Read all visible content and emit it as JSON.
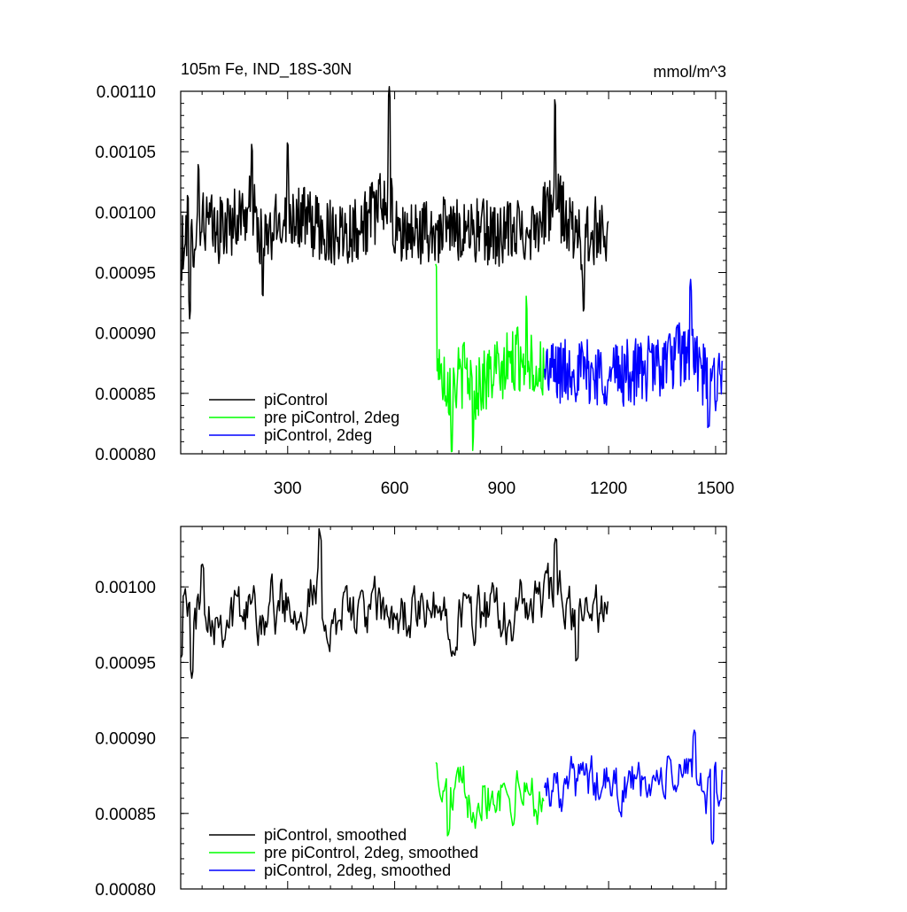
{
  "chart_data": [
    {
      "type": "line",
      "title": "105m Fe, IND_18S-30N",
      "units": "mmol/m^3",
      "xlabel": "",
      "ylabel": "",
      "xlim": [
        0,
        1530
      ],
      "ylim": [
        0.0008,
        0.0011
      ],
      "x_ticks": [
        300,
        600,
        900,
        1200,
        1500
      ],
      "y_ticks": [
        "0.00080",
        "0.00085",
        "0.00090",
        "0.00095",
        "0.00100",
        "0.00105",
        "0.00110"
      ],
      "legend_position": "bottom-left",
      "series": [
        {
          "name": "piControl",
          "color": "#000000",
          "x_range": [
            1,
            1200
          ],
          "mean": 0.000985,
          "variability": 2e-05,
          "approx_points": [
            [
              1,
              0.000945
            ],
            [
              10,
              0.000962
            ],
            [
              20,
              0.00102
            ],
            [
              25,
              0.00091
            ],
            [
              50,
              0.001037
            ],
            [
              100,
              0.00098
            ],
            [
              200,
              0.001058
            ],
            [
              230,
              0.00093
            ],
            [
              300,
              0.001055
            ],
            [
              400,
              0.00098
            ],
            [
              500,
              0.00099
            ],
            [
              585,
              0.001097
            ],
            [
              600,
              0.00097
            ],
            [
              700,
              0.00098
            ],
            [
              800,
              0.00099
            ],
            [
              900,
              0.00097
            ],
            [
              1000,
              0.001
            ],
            [
              1050,
              0.001087
            ],
            [
              1130,
              0.00092
            ],
            [
              1150,
              0.00098
            ],
            [
              1200,
              0.000995
            ]
          ]
        },
        {
          "name": "pre piControl, 2deg",
          "color": "#00ff00",
          "x_range": [
            715,
            1020
          ],
          "mean": 0.00087,
          "variability": 2e-05,
          "approx_points": [
            [
              715,
              0.000955
            ],
            [
              730,
              0.00087
            ],
            [
              760,
              0.000805
            ],
            [
              800,
              0.00087
            ],
            [
              820,
              0.000808
            ],
            [
              900,
              0.00087
            ],
            [
              970,
              0.000924
            ],
            [
              1000,
              0.00086
            ],
            [
              1020,
              0.000868
            ]
          ]
        },
        {
          "name": "piControl, 2deg",
          "color": "#0000ff",
          "x_range": [
            1020,
            1520
          ],
          "mean": 0.000868,
          "variability": 2e-05,
          "approx_points": [
            [
              1020,
              0.000868
            ],
            [
              1100,
              0.00087
            ],
            [
              1200,
              0.00086
            ],
            [
              1300,
              0.00087
            ],
            [
              1430,
              0.000939
            ],
            [
              1480,
              0.000818
            ],
            [
              1520,
              0.00088
            ]
          ]
        }
      ]
    },
    {
      "type": "line",
      "title": "",
      "xlabel": "",
      "ylabel": "",
      "xlim": [
        0,
        1530
      ],
      "ylim": [
        0.0008,
        0.00104
      ],
      "x_ticks": [
        300,
        600,
        900,
        1200,
        1500
      ],
      "y_ticks": [
        "0.00080",
        "0.00085",
        "0.00090",
        "0.00095",
        "0.00100"
      ],
      "legend_position": "bottom-left",
      "series": [
        {
          "name": "piControl, smoothed",
          "color": "#000000",
          "x_range": [
            1,
            1200
          ],
          "mean": 0.000982,
          "variability": 1.4e-05,
          "approx_points": [
            [
              1,
              0.000957
            ],
            [
              10,
              0.001
            ],
            [
              30,
              0.000941
            ],
            [
              60,
              0.001019
            ],
            [
              100,
              0.00098
            ],
            [
              200,
              0.00099
            ],
            [
              390,
              0.001035
            ],
            [
              400,
              0.00097
            ],
            [
              500,
              0.00099
            ],
            [
              600,
              0.00098
            ],
            [
              700,
              0.00098
            ],
            [
              800,
              0.00099
            ],
            [
              900,
              0.00097
            ],
            [
              1050,
              0.001031
            ],
            [
              1110,
              0.000953
            ],
            [
              1150,
              0.00098
            ],
            [
              1200,
              0.000988
            ]
          ]
        },
        {
          "name": "pre piControl, 2deg, smoothed",
          "color": "#00ff00",
          "x_range": [
            715,
            1020
          ],
          "mean": 0.000864,
          "variability": 1.3e-05,
          "approx_points": [
            [
              715,
              0.000887
            ],
            [
              730,
              0.00086
            ],
            [
              750,
              0.000836
            ],
            [
              800,
              0.000862
            ],
            [
              850,
              0.00087
            ],
            [
              900,
              0.00087
            ],
            [
              950,
              0.000866
            ],
            [
              1020,
              0.000858
            ]
          ]
        },
        {
          "name": "piControl, 2deg, smoothed",
          "color": "#0000ff",
          "x_range": [
            1020,
            1520
          ],
          "mean": 0.000868,
          "variability": 1.2e-05,
          "approx_points": [
            [
              1020,
              0.00087
            ],
            [
              1100,
              0.00088
            ],
            [
              1200,
              0.00087
            ],
            [
              1300,
              0.00087
            ],
            [
              1440,
              0.000905
            ],
            [
              1490,
              0.000826
            ],
            [
              1520,
              0.00088
            ]
          ]
        }
      ]
    }
  ]
}
